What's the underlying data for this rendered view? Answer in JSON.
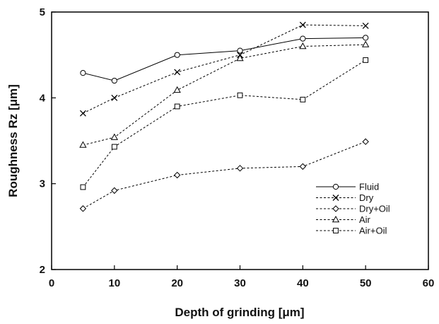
{
  "chart_data": {
    "type": "line",
    "title": "",
    "xlabel": "Depth of grinding [μm]",
    "ylabel": "Roughness Rz [μm]",
    "xlim": [
      0,
      60
    ],
    "ylim": [
      2,
      5
    ],
    "x_ticks": [
      0,
      10,
      20,
      30,
      40,
      50,
      60
    ],
    "y_ticks": [
      2,
      3,
      4,
      5
    ],
    "grid": false,
    "legend_position": "bottom-right",
    "series": [
      {
        "name": "Fluid",
        "marker": "circle",
        "line": "solid",
        "x": [
          5,
          10,
          20,
          30,
          40,
          50
        ],
        "y": [
          4.29,
          4.2,
          4.5,
          4.55,
          4.69,
          4.7
        ]
      },
      {
        "name": "Dry",
        "marker": "cross",
        "line": "dashed",
        "x": [
          5,
          10,
          20,
          30,
          40,
          50
        ],
        "y": [
          3.82,
          4.0,
          4.3,
          4.5,
          4.85,
          4.84
        ]
      },
      {
        "name": "Dry+Oil",
        "marker": "diamond",
        "line": "dashed",
        "x": [
          5,
          10,
          20,
          30,
          40,
          50
        ],
        "y": [
          2.71,
          2.92,
          3.1,
          3.18,
          3.2,
          3.49
        ]
      },
      {
        "name": "Air",
        "marker": "triangle",
        "line": "dashed",
        "x": [
          5,
          10,
          20,
          30,
          40,
          50
        ],
        "y": [
          3.45,
          3.54,
          4.09,
          4.46,
          4.6,
          4.62
        ]
      },
      {
        "name": "Air+Oil",
        "marker": "square",
        "line": "dashed",
        "x": [
          5,
          10,
          20,
          30,
          40,
          50
        ],
        "y": [
          2.96,
          3.43,
          3.9,
          4.03,
          3.98,
          4.44
        ]
      }
    ]
  }
}
